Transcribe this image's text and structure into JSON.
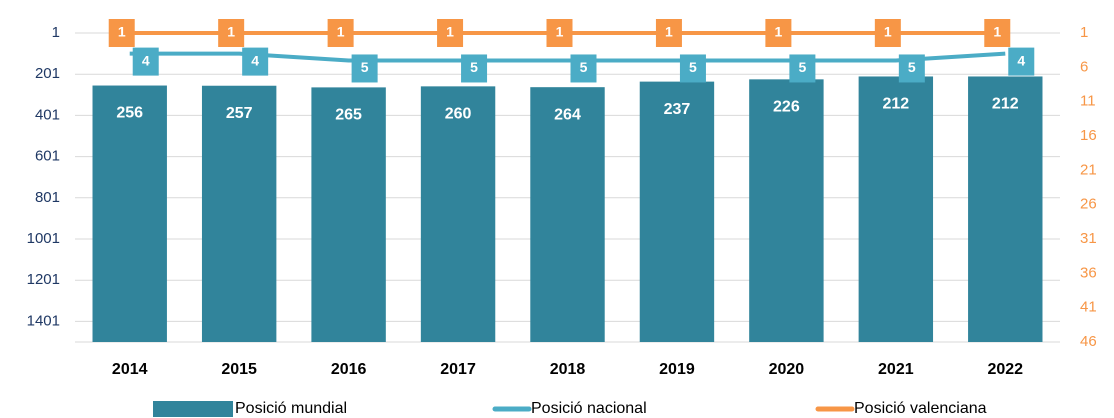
{
  "chart_data": {
    "type": "bar_line",
    "categories": [
      "2014",
      "2015",
      "2016",
      "2017",
      "2018",
      "2019",
      "2020",
      "2021",
      "2022"
    ],
    "series": [
      {
        "name": "Posició mundial",
        "type": "bar",
        "color": "#31849b",
        "values": [
          256,
          257,
          265,
          260,
          264,
          237,
          226,
          212,
          212
        ]
      },
      {
        "name": "Posició nacional",
        "type": "line",
        "axis": "y2",
        "color": "#4bacc6",
        "values": [
          4,
          4,
          5,
          5,
          5,
          5,
          5,
          5,
          4
        ]
      },
      {
        "name": "Posició valenciana",
        "type": "line",
        "axis": "y2",
        "color": "#f79646",
        "values": [
          1,
          1,
          1,
          1,
          1,
          1,
          1,
          1,
          1
        ]
      }
    ],
    "ylim": [
      1501,
      1
    ],
    "yticks": [
      1,
      201,
      401,
      601,
      801,
      1001,
      1201,
      1401
    ],
    "y2lim": [
      46,
      1
    ],
    "y2ticks": [
      1,
      6,
      11,
      16,
      21,
      26,
      31,
      36,
      41,
      46
    ],
    "grid": true
  }
}
